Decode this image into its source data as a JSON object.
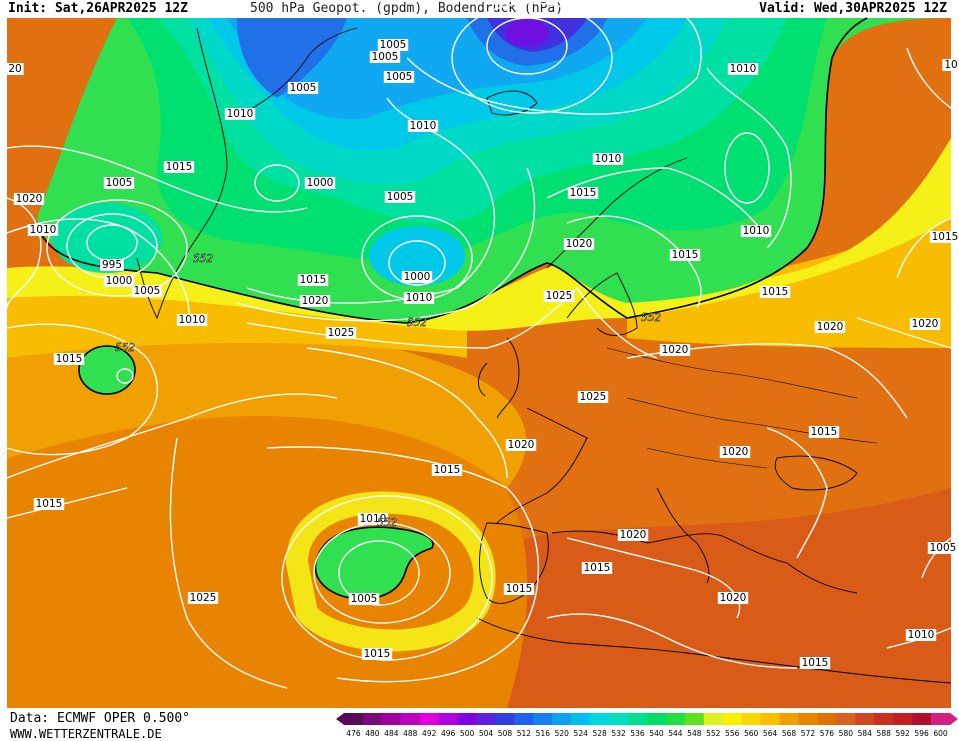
{
  "header": {
    "init": "Init: Sat,26APR2025 12Z",
    "title": "500 hPa Geopot. (gpdm), Bodendruck (hPa)",
    "valid": "Valid: Wed,30APR2025 12Z"
  },
  "footer": {
    "source": "Data: ECMWF OPER 0.500°",
    "website": "WWW.WETTERZENTRALE.DE"
  },
  "legend": {
    "values": [
      "476",
      "480",
      "484",
      "488",
      "492",
      "496",
      "500",
      "504",
      "508",
      "512",
      "516",
      "520",
      "524",
      "528",
      "532",
      "536",
      "540",
      "544",
      "548",
      "552",
      "556",
      "560",
      "564",
      "568",
      "572",
      "576",
      "580",
      "584",
      "588",
      "592",
      "596",
      "600"
    ],
    "colors": [
      "#5a0a5a",
      "#7a0a7a",
      "#a000a0",
      "#c000c0",
      "#e000e0",
      "#b000e0",
      "#8000e0",
      "#5a20e0",
      "#3040e0",
      "#2060f0",
      "#1880f0",
      "#10a0f0",
      "#00c0f0",
      "#00d8e0",
      "#00e0c0",
      "#00e090",
      "#00e060",
      "#20e040",
      "#60e020",
      "#e0f020",
      "#f8f000",
      "#f8d800",
      "#f8c000",
      "#f0a000",
      "#e88800",
      "#e07000",
      "#d86020",
      "#d04820",
      "#c83020",
      "#c02020",
      "#b01030",
      "#d02080"
    ]
  },
  "map": {
    "palette": {
      "h548": "#30e050",
      "h544": "#00e070",
      "h540": "#00e0a0",
      "h536": "#00d8c8",
      "h532": "#00c8e8",
      "h524": "#10a8f0",
      "h516": "#2070e8",
      "h508": "#4030e0",
      "h500": "#7010e0",
      "h556": "#f4f018",
      "h560": "#f8d400",
      "h564": "#f8bc00",
      "h568": "#f0a000",
      "h572": "#e88400",
      "h576": "#e07010",
      "h580": "#d85c18",
      "coast": "#000000",
      "isobar": "#ffffff",
      "h552line": "#000000"
    },
    "isobar_labels": [
      {
        "text": "1005"
      },
      {
        "text": "1005"
      },
      {
        "text": "1005"
      },
      {
        "text": "1005"
      },
      {
        "text": "1010"
      },
      {
        "text": "1010"
      },
      {
        "text": "1010"
      },
      {
        "text": "1015"
      },
      {
        "text": "1005"
      },
      {
        "text": "1000"
      },
      {
        "text": "1005"
      },
      {
        "text": "1010"
      },
      {
        "text": "1020"
      },
      {
        "text": "1010"
      },
      {
        "text": "995"
      },
      {
        "text": "1000"
      },
      {
        "text": "1005"
      },
      {
        "text": "1010"
      },
      {
        "text": "1000"
      },
      {
        "text": "1010"
      },
      {
        "text": "1015"
      },
      {
        "text": "1020"
      },
      {
        "text": "1025"
      },
      {
        "text": "1015"
      },
      {
        "text": "1010"
      },
      {
        "text": "1015"
      },
      {
        "text": "1015"
      },
      {
        "text": "1025"
      },
      {
        "text": "1020"
      },
      {
        "text": "1020"
      },
      {
        "text": "1015"
      },
      {
        "text": "1020"
      },
      {
        "text": "1025"
      },
      {
        "text": "1020"
      },
      {
        "text": "1015"
      },
      {
        "text": "1015"
      },
      {
        "text": "1020"
      },
      {
        "text": "1015"
      },
      {
        "text": "1010"
      },
      {
        "text": "1005"
      },
      {
        "text": "1025"
      },
      {
        "text": "1015"
      },
      {
        "text": "1015"
      },
      {
        "text": "1020"
      },
      {
        "text": "1015"
      },
      {
        "text": "1020"
      },
      {
        "text": "1005"
      },
      {
        "text": "1010"
      },
      {
        "text": "1015"
      },
      {
        "text": "1020"
      },
      {
        "text": "1015"
      },
      {
        "text": "20"
      },
      {
        "text": "10"
      }
    ],
    "height_labels": [
      {
        "text": "552"
      },
      {
        "text": "552"
      },
      {
        "text": "552"
      },
      {
        "text": "552"
      },
      {
        "text": "552"
      }
    ]
  }
}
